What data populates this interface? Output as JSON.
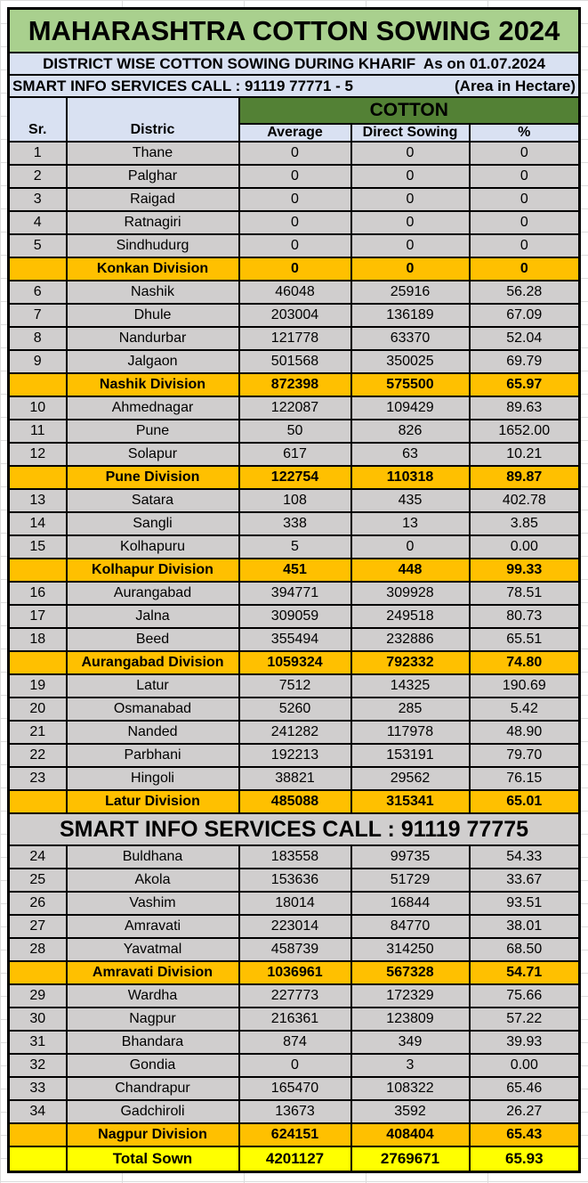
{
  "sheet": {
    "title": "MAHARASHTRA COTTON SOWING 2024",
    "subtitle": "DISTRICT WISE COTTON SOWING DURING KHARIF  As on 01.07.2024",
    "contact_line": "SMART INFO SERVICES CALL : 91119 77771 - 5",
    "area_note": "(Area in Hectare)",
    "group_header": "COTTON",
    "columns": {
      "sr": "Sr.",
      "district": "Distric",
      "average": "Average",
      "direct": "Direct Sowing",
      "percent": "%"
    }
  },
  "colors": {
    "title-bg": "#A9D08E",
    "info-bg": "#D9E1F2",
    "cotton-bg": "#538135",
    "district-bg": "#D0CECE",
    "division-bg": "#FFC000",
    "banner-bg": "#D0CECE",
    "total-bg": "#FFFF00",
    "border": "#000000",
    "flag": "#217346",
    "gridline": "#DCDCDC"
  },
  "rows": [
    {
      "type": "district",
      "sr": "1",
      "district": "Thane",
      "average": "0",
      "direct": "0",
      "percent": "0"
    },
    {
      "type": "district",
      "sr": "2",
      "district": "Palghar",
      "average": "0",
      "direct": "0",
      "percent": "0"
    },
    {
      "type": "district",
      "sr": "3",
      "district": "Raigad",
      "average": "0",
      "direct": "0",
      "percent": "0"
    },
    {
      "type": "district",
      "sr": "4",
      "district": "Ratnagiri",
      "average": "0",
      "direct": "0",
      "percent": "0"
    },
    {
      "type": "district",
      "sr": "5",
      "district": "Sindhudurg",
      "average": "0",
      "direct": "0",
      "percent": "0"
    },
    {
      "type": "division",
      "sr": "",
      "district": "Konkan Division",
      "average": "0",
      "direct": "0",
      "percent": "0"
    },
    {
      "type": "district",
      "sr": "6",
      "district": "Nashik",
      "average": "46048",
      "direct": "25916",
      "percent": "56.28"
    },
    {
      "type": "district",
      "sr": "7",
      "district": "Dhule",
      "average": "203004",
      "direct": "136189",
      "percent": "67.09"
    },
    {
      "type": "district",
      "sr": "8",
      "district": "Nandurbar",
      "average": "121778",
      "direct": "63370",
      "percent": "52.04"
    },
    {
      "type": "district",
      "sr": "9",
      "district": "Jalgaon",
      "average": "501568",
      "direct": "350025",
      "percent": "69.79"
    },
    {
      "type": "division",
      "sr": "",
      "district": "Nashik Division",
      "average": "872398",
      "direct": "575500",
      "percent": "65.97",
      "flags": [
        "average",
        "direct"
      ]
    },
    {
      "type": "district",
      "sr": "10",
      "district": "Ahmednagar",
      "average": "122087",
      "direct": "109429",
      "percent": "89.63"
    },
    {
      "type": "district",
      "sr": "11",
      "district": "Pune",
      "average": "50",
      "direct": "826",
      "percent": "1652.00"
    },
    {
      "type": "district",
      "sr": "12",
      "district": "Solapur",
      "average": "617",
      "direct": "63",
      "percent": "10.21"
    },
    {
      "type": "division",
      "sr": "",
      "district": "Pune Division",
      "average": "122754",
      "direct": "110318",
      "percent": "89.87"
    },
    {
      "type": "district",
      "sr": "13",
      "district": "Satara",
      "average": "108",
      "direct": "435",
      "percent": "402.78"
    },
    {
      "type": "district",
      "sr": "14",
      "district": "Sangli",
      "average": "338",
      "direct": "13",
      "percent": "3.85"
    },
    {
      "type": "district",
      "sr": "15",
      "district": "Kolhapuru",
      "average": "5",
      "direct": "0",
      "percent": "0.00"
    },
    {
      "type": "division",
      "sr": "",
      "district": "Kolhapur Division",
      "average": "451",
      "direct": "448",
      "percent": "99.33"
    },
    {
      "type": "district",
      "sr": "16",
      "district": "Aurangabad",
      "average": "394771",
      "direct": "309928",
      "percent": "78.51"
    },
    {
      "type": "district",
      "sr": "17",
      "district": "Jalna",
      "average": "309059",
      "direct": "249518",
      "percent": "80.73"
    },
    {
      "type": "district",
      "sr": "18",
      "district": "Beed",
      "average": "355494",
      "direct": "232886",
      "percent": "65.51"
    },
    {
      "type": "division",
      "sr": "",
      "district": "Aurangabad Division",
      "average": "1059324",
      "direct": "792332",
      "percent": "74.80"
    },
    {
      "type": "district",
      "sr": "19",
      "district": "Latur",
      "average": "7512",
      "direct": "14325",
      "percent": "190.69"
    },
    {
      "type": "district",
      "sr": "20",
      "district": "Osmanabad",
      "average": "5260",
      "direct": "285",
      "percent": "5.42"
    },
    {
      "type": "district",
      "sr": "21",
      "district": "Nanded",
      "average": "241282",
      "direct": "117978",
      "percent": "48.90"
    },
    {
      "type": "district",
      "sr": "22",
      "district": "Parbhani",
      "average": "192213",
      "direct": "153191",
      "percent": "79.70"
    },
    {
      "type": "district",
      "sr": "23",
      "district": "Hingoli",
      "average": "38821",
      "direct": "29562",
      "percent": "76.15"
    },
    {
      "type": "division",
      "sr": "",
      "district": "Latur Division",
      "average": "485088",
      "direct": "315341",
      "percent": "65.01"
    },
    {
      "type": "banner",
      "label": "SMART INFO SERVICES CALL : 91119 77775"
    },
    {
      "type": "district",
      "sr": "24",
      "district": "Buldhana",
      "average": "183558",
      "direct": "99735",
      "percent": "54.33"
    },
    {
      "type": "district",
      "sr": "25",
      "district": "Akola",
      "average": "153636",
      "direct": "51729",
      "percent": "33.67"
    },
    {
      "type": "district",
      "sr": "26",
      "district": "Vashim",
      "average": "18014",
      "direct": "16844",
      "percent": "93.51"
    },
    {
      "type": "district",
      "sr": "27",
      "district": "Amravati",
      "average": "223014",
      "direct": "84770",
      "percent": "38.01"
    },
    {
      "type": "district",
      "sr": "28",
      "district": "Yavatmal",
      "average": "458739",
      "direct": "314250",
      "percent": "68.50"
    },
    {
      "type": "division",
      "sr": "",
      "district": "Amravati Division",
      "average": "1036961",
      "direct": "567328",
      "percent": "54.71"
    },
    {
      "type": "district",
      "sr": "29",
      "district": "Wardha",
      "average": "227773",
      "direct": "172329",
      "percent": "75.66"
    },
    {
      "type": "district",
      "sr": "30",
      "district": "Nagpur",
      "average": "216361",
      "direct": "123809",
      "percent": "57.22"
    },
    {
      "type": "district",
      "sr": "31",
      "district": "Bhandara",
      "average": "874",
      "direct": "349",
      "percent": "39.93"
    },
    {
      "type": "district",
      "sr": "32",
      "district": "Gondia",
      "average": "0",
      "direct": "3",
      "percent": "0.00"
    },
    {
      "type": "district",
      "sr": "33",
      "district": "Chandrapur",
      "average": "165470",
      "direct": "108322",
      "percent": "65.46"
    },
    {
      "type": "district",
      "sr": "34",
      "district": "Gadchiroli",
      "average": "13673",
      "direct": "3592",
      "percent": "26.27"
    },
    {
      "type": "division",
      "sr": "",
      "district": "Nagpur Division",
      "average": "624151",
      "direct": "408404",
      "percent": "65.43"
    },
    {
      "type": "total",
      "sr": "",
      "district": "Total Sown",
      "average": "4201127",
      "direct": "2769671",
      "percent": "65.93"
    }
  ]
}
